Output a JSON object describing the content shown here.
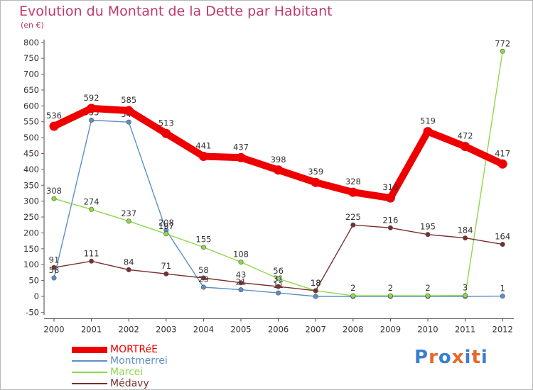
{
  "title": "Evolution du Montant de la Dette par Habitant",
  "subtitle": "(en €)",
  "logo": {
    "letters": [
      "P",
      "r",
      "o",
      "x",
      "i",
      "t",
      "i"
    ],
    "colors": [
      "#3a7fd0",
      "#e8662a",
      "#3a7fd0",
      "#e8662a",
      "#3a7fd0",
      "#e8662a",
      "#3a7fd0"
    ]
  },
  "chart_data": {
    "type": "line",
    "title": "Evolution du Montant de la Dette par Habitant",
    "subtitle": "(en €)",
    "xlabel": "",
    "ylabel": "",
    "x": [
      "2000",
      "2001",
      "2002",
      "2003",
      "2004",
      "2005",
      "2006",
      "2007",
      "2008",
      "2009",
      "2010",
      "2011",
      "2012"
    ],
    "ylim": [
      -50,
      800
    ],
    "yticks": [
      -50,
      0,
      50,
      100,
      150,
      200,
      250,
      300,
      350,
      400,
      450,
      500,
      550,
      600,
      650,
      700,
      750,
      800
    ],
    "grid": false,
    "legend_position": "bottom-left",
    "series": [
      {
        "name": "MORTRéE",
        "color": "#ee0000",
        "emphasis": true,
        "values": [
          536,
          592,
          585,
          513,
          441,
          437,
          398,
          359,
          328,
          310,
          519,
          472,
          417
        ]
      },
      {
        "name": "Montmerrei",
        "color": "#5b8fc7",
        "values": [
          58,
          555,
          549,
          208,
          29,
          21,
          11,
          0,
          0,
          0,
          0,
          0,
          1
        ]
      },
      {
        "name": "Marcei",
        "color": "#8fd84a",
        "values": [
          308,
          274,
          237,
          197,
          155,
          108,
          56,
          18,
          2,
          2,
          2,
          3,
          772
        ]
      },
      {
        "name": "Médavy",
        "color": "#7a2e2e",
        "values": [
          91,
          111,
          84,
          71,
          58,
          43,
          31,
          18,
          225,
          216,
          195,
          184,
          164
        ]
      }
    ],
    "data_labels": [
      [
        "536",
        "592",
        "585",
        "513",
        "441",
        "437",
        "398",
        "359",
        "328",
        "310",
        "519",
        "472",
        "417"
      ],
      [
        "58",
        "555",
        "549",
        "208",
        "29",
        "21",
        "11",
        "",
        "",
        "",
        "",
        "",
        "1"
      ],
      [
        "308",
        "274",
        "237",
        "197",
        "155",
        "108",
        "56",
        "18",
        "2",
        "2",
        "2",
        "3",
        "772"
      ],
      [
        "91",
        "111",
        "84",
        "71",
        "58",
        "43",
        "31",
        "18",
        "225",
        "216",
        "195",
        "184",
        "164"
      ]
    ]
  }
}
